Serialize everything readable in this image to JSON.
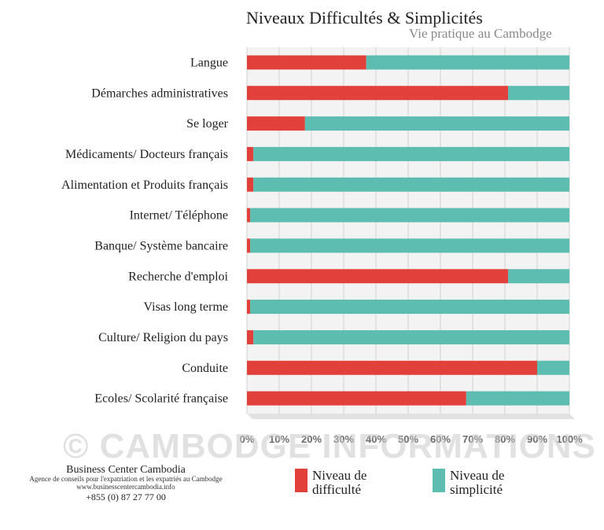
{
  "header": {
    "title": "Niveaux Difficultés & Simplicités",
    "subtitle": "Vie pratique au Cambodge"
  },
  "watermark": "© CAMBODGE INFORMATIONS",
  "footer": {
    "company_name": "Business Center Cambodia",
    "tagline": "Agence de conseils pour l'expatriation et les expatriés au Cambodge",
    "website": "www.businesscentercambodia.info",
    "phone": "+855 (0) 87 27 77 00"
  },
  "colors": {
    "difficulty": "#e2403a",
    "simplicity": "#5dbdb0",
    "grid": "#d2d2d2",
    "plot_bg": "#f3f3f3"
  },
  "chart_data": {
    "type": "bar",
    "orientation": "horizontal",
    "stacked": true,
    "title": "Niveaux Difficultés & Simplicités",
    "subtitle": "Vie pratique au Cambodge",
    "categories": [
      "Langue",
      "Démarches administratives",
      "Se loger",
      "Médicaments/ Docteurs français",
      "Alimentation et Produits français",
      "Internet/ Téléphone",
      "Banque/ Système bancaire",
      "Recherche d'emploi",
      "Visas long terme",
      "Culture/ Religion du pays",
      "Conduite",
      "Ecoles/ Scolarité française"
    ],
    "series": [
      {
        "name": "Niveau de difficulté",
        "values": [
          37,
          81,
          18,
          2,
          2,
          1,
          1,
          81,
          1,
          2,
          90,
          68
        ]
      },
      {
        "name": "Niveau de simplicité",
        "values": [
          63,
          19,
          82,
          98,
          98,
          99,
          99,
          19,
          99,
          98,
          10,
          32
        ]
      }
    ],
    "xlim": [
      0,
      100
    ],
    "xticks": [
      "0%",
      "10%",
      "20%",
      "30%",
      "40%",
      "50%",
      "60%",
      "70%",
      "80%",
      "90%",
      "100%"
    ],
    "grid": true,
    "legend": "bottom"
  }
}
